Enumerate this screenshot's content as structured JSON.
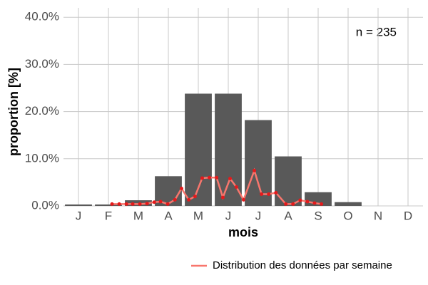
{
  "chart_data": {
    "type": "bar",
    "xlabel": "mois",
    "ylabel": "proportion [%]",
    "annotation": "n = 235",
    "categories": [
      "J",
      "F",
      "M",
      "A",
      "M",
      "J",
      "J",
      "A",
      "S",
      "O",
      "N",
      "D"
    ],
    "values": [
      0.3,
      0.3,
      1.2,
      6.3,
      23.8,
      23.8,
      18.2,
      10.5,
      2.9,
      0.8,
      0,
      0
    ],
    "color": "#595959",
    "ylim": [
      0,
      42
    ],
    "yticks": [
      {
        "value": 0,
        "label": "0.0%"
      },
      {
        "value": 10,
        "label": "10.0%"
      },
      {
        "value": 20,
        "label": "20.0%"
      },
      {
        "value": 30,
        "label": "30.0%"
      },
      {
        "value": 40,
        "label": "40.0%"
      }
    ],
    "grid": true,
    "legend": "bottom-right",
    "line": {
      "name": "Distribution des données par semaine",
      "color": "#f8766d",
      "point_color": "#e41a1c",
      "x": [
        2.12,
        2.36,
        2.6,
        2.81,
        3.05,
        3.29,
        3.53,
        3.74,
        3.98,
        4.22,
        4.44,
        4.68,
        4.89,
        5.13,
        5.37,
        5.61,
        5.82,
        6.06,
        6.27,
        6.51,
        6.87,
        7.11,
        7.35,
        7.59,
        7.92,
        8.16,
        8.4,
        8.64,
        8.88,
        9.11
      ],
      "values": [
        0.4,
        0.4,
        0.4,
        0.4,
        0.4,
        0.5,
        0.8,
        0.9,
        0.4,
        1.3,
        3.7,
        1.3,
        2.0,
        5.9,
        6.0,
        6.0,
        1.8,
        5.8,
        4.0,
        1.3,
        7.5,
        2.5,
        2.5,
        2.8,
        0.4,
        0.4,
        1.2,
        0.9,
        0.6,
        0.4
      ]
    }
  }
}
